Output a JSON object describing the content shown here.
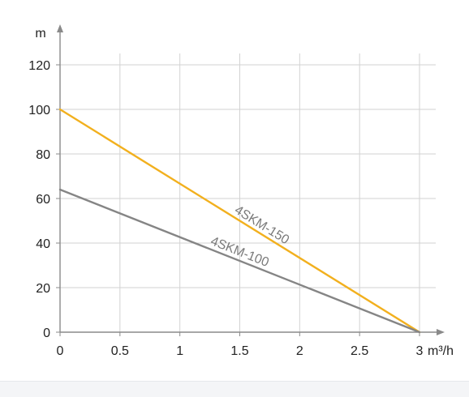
{
  "chart_data": {
    "type": "line",
    "title": "",
    "xlabel": "m³/h",
    "ylabel": "m",
    "xlim": [
      0,
      3
    ],
    "ylim": [
      0,
      120
    ],
    "x_ticks": [
      0,
      0.5,
      1,
      1.5,
      2,
      2.5,
      3
    ],
    "x_tick_labels": [
      "0",
      "0.5",
      "1",
      "1.5",
      "2",
      "2.5",
      "3"
    ],
    "y_ticks": [
      0,
      20,
      40,
      60,
      80,
      100,
      120
    ],
    "y_tick_labels": [
      "0",
      "20",
      "40",
      "60",
      "80",
      "100",
      "120"
    ],
    "grid": true,
    "series": [
      {
        "name": "4SKM-150",
        "x": [
          0,
          3
        ],
        "y": [
          100,
          0
        ],
        "color": "#f2b01e",
        "label_at_x": 1.45
      },
      {
        "name": "4SKM-100",
        "x": [
          0,
          3
        ],
        "y": [
          64,
          0
        ],
        "color": "#858585",
        "label_at_x": 1.25
      }
    ]
  }
}
